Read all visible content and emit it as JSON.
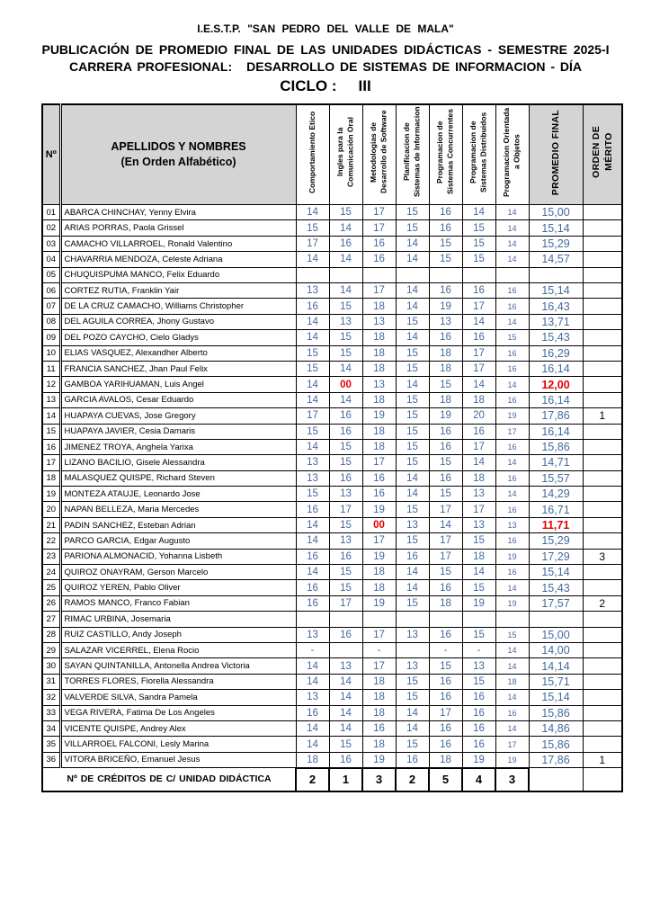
{
  "page": {
    "institution_line": "I.E.S.T.P.    \"SAN PEDRO DEL VALLE DE MALA\"",
    "title_line": "PUBLICACIÓN DE PROMEDIO FINAL DE LAS UNIDADES DIDÁCTICAS - SEMESTRE 2025-I",
    "career_label": "CARRERA PROFESIONAL:",
    "career_value": "DESARROLLO DE SISTEMAS DE INFORMACION - DÍA",
    "cycle_label": "CICLO :",
    "cycle_value": "III"
  },
  "table": {
    "num_header": "Nº",
    "names_header": "APELLIDOS Y NOMBRES",
    "names_subheader": "(En Orden Alfabético)",
    "course_headers": [
      "Comportamiento Etico",
      "Ingles para la Comunicación Oral",
      "Metodologias de Desarrollo de Software",
      "Planificacion de Sistemas de Informacion",
      "Programacion de Sistemas Concurrentes",
      "Programacion de Sistemas Distribuidos",
      "Programacion Orientada a Objetos"
    ],
    "promedio_header": "PROMEDIO FINAL",
    "merito_header": "ORDEN DE\nMÉRITO",
    "rows": [
      {
        "num": "01",
        "name": "ABARCA CHINCHAY, Yenny Elvira",
        "grades": [
          "14",
          "15",
          "17",
          "15",
          "16",
          "14",
          "14"
        ],
        "prom": "15,00",
        "merito": ""
      },
      {
        "num": "02",
        "name": "ARIAS PORRAS, Paola Grissel",
        "grades": [
          "15",
          "14",
          "17",
          "15",
          "16",
          "15",
          "14"
        ],
        "prom": "15,14",
        "merito": ""
      },
      {
        "num": "03",
        "name": "CAMACHO VILLARROEL, Ronald Valentino",
        "grades": [
          "17",
          "16",
          "16",
          "14",
          "15",
          "15",
          "14"
        ],
        "prom": "15,29",
        "merito": ""
      },
      {
        "num": "04",
        "name": "CHAVARRIA MENDOZA, Celeste Adriana",
        "grades": [
          "14",
          "14",
          "16",
          "14",
          "15",
          "15",
          "14"
        ],
        "prom": "14,57",
        "merito": ""
      },
      {
        "num": "05",
        "name": "CHUQUISPUMA MANCO, Felix Eduardo",
        "grades": [
          "",
          "",
          "",
          "",
          "",
          "",
          ""
        ],
        "prom": "",
        "merito": ""
      },
      {
        "num": "06",
        "name": "CORTEZ RUTIA, Franklin Yair",
        "grades": [
          "13",
          "14",
          "17",
          "14",
          "16",
          "16",
          "16"
        ],
        "prom": "15,14",
        "merito": ""
      },
      {
        "num": "07",
        "name": "DE LA CRUZ CAMACHO, Williams Christopher",
        "grades": [
          "16",
          "15",
          "18",
          "14",
          "19",
          "17",
          "16"
        ],
        "prom": "16,43",
        "merito": ""
      },
      {
        "num": "08",
        "name": "DEL AGUILA CORREA, Jhony Gustavo",
        "grades": [
          "14",
          "13",
          "13",
          "15",
          "13",
          "14",
          "14"
        ],
        "prom": "13,71",
        "merito": ""
      },
      {
        "num": "09",
        "name": "DEL POZO CAYCHO, Cielo Gladys",
        "grades": [
          "14",
          "15",
          "18",
          "14",
          "16",
          "16",
          "15"
        ],
        "prom": "15,43",
        "merito": ""
      },
      {
        "num": "10",
        "name": "ELIAS VASQUEZ, Alexandher Alberto",
        "grades": [
          "15",
          "15",
          "18",
          "15",
          "18",
          "17",
          "16"
        ],
        "prom": "16,29",
        "merito": ""
      },
      {
        "num": "11",
        "name": "FRANCIA SANCHEZ, Jhan Paul Felix",
        "grades": [
          "15",
          "14",
          "18",
          "15",
          "18",
          "17",
          "16"
        ],
        "prom": "16,14",
        "merito": ""
      },
      {
        "num": "12",
        "name": "GAMBOA YARIHUAMAN, Luis Angel",
        "grades": [
          "14",
          "00",
          "13",
          "14",
          "15",
          "14",
          "14"
        ],
        "prom": "12,00",
        "merito": "",
        "red": [
          1
        ],
        "prom_red": true
      },
      {
        "num": "13",
        "name": "GARCIA AVALOS, Cesar Eduardo",
        "grades": [
          "14",
          "14",
          "18",
          "15",
          "18",
          "18",
          "16"
        ],
        "prom": "16,14",
        "merito": ""
      },
      {
        "num": "14",
        "name": "HUAPAYA CUEVAS, Jose Gregory",
        "grades": [
          "17",
          "16",
          "19",
          "15",
          "19",
          "20",
          "19"
        ],
        "prom": "17,86",
        "merito": "1"
      },
      {
        "num": "15",
        "name": "HUAPAYA JAVIER, Cesia Damaris",
        "grades": [
          "15",
          "16",
          "18",
          "15",
          "16",
          "16",
          "17"
        ],
        "prom": "16,14",
        "merito": ""
      },
      {
        "num": "16",
        "name": "JIMENEZ TROYA, Anghela Yarixa",
        "grades": [
          "14",
          "15",
          "18",
          "15",
          "16",
          "17",
          "16"
        ],
        "prom": "15,86",
        "merito": ""
      },
      {
        "num": "17",
        "name": "LIZANO BACILIO, Gisele Alessandra",
        "grades": [
          "13",
          "15",
          "17",
          "15",
          "15",
          "14",
          "14"
        ],
        "prom": "14,71",
        "merito": ""
      },
      {
        "num": "18",
        "name": "MALASQUEZ QUISPE, Richard Steven",
        "grades": [
          "13",
          "16",
          "16",
          "14",
          "16",
          "18",
          "16"
        ],
        "prom": "15,57",
        "merito": ""
      },
      {
        "num": "19",
        "name": "MONTEZA ATAUJE, Leonardo Jose",
        "grades": [
          "15",
          "13",
          "16",
          "14",
          "15",
          "13",
          "14"
        ],
        "prom": "14,29",
        "merito": ""
      },
      {
        "num": "20",
        "name": "NAPAN BELLEZA, Maria Mercedes",
        "grades": [
          "16",
          "17",
          "19",
          "15",
          "17",
          "17",
          "16"
        ],
        "prom": "16,71",
        "merito": ""
      },
      {
        "num": "21",
        "name": "PADIN SANCHEZ, Esteban Adrian",
        "grades": [
          "14",
          "15",
          "00",
          "13",
          "14",
          "13",
          "13"
        ],
        "prom": "11,71",
        "merito": "",
        "red": [
          2
        ],
        "prom_red": true
      },
      {
        "num": "22",
        "name": "PARCO GARCIA, Edgar Augusto",
        "grades": [
          "14",
          "13",
          "17",
          "15",
          "17",
          "15",
          "16"
        ],
        "prom": "15,29",
        "merito": ""
      },
      {
        "num": "23",
        "name": "PARIONA ALMONACID, Yohanna Lisbeth",
        "grades": [
          "16",
          "16",
          "19",
          "16",
          "17",
          "18",
          "19"
        ],
        "prom": "17,29",
        "merito": "3"
      },
      {
        "num": "24",
        "name": "QUIROZ ONAYRAM, Gerson Marcelo",
        "grades": [
          "14",
          "15",
          "18",
          "14",
          "15",
          "14",
          "16"
        ],
        "prom": "15,14",
        "merito": ""
      },
      {
        "num": "25",
        "name": "QUIROZ YEREN, Pablo Oliver",
        "grades": [
          "16",
          "15",
          "18",
          "14",
          "16",
          "15",
          "14"
        ],
        "prom": "15,43",
        "merito": ""
      },
      {
        "num": "26",
        "name": "RAMOS MANCO, Franco Fabian",
        "grades": [
          "16",
          "17",
          "19",
          "15",
          "18",
          "19",
          "19"
        ],
        "prom": "17,57",
        "merito": "2"
      },
      {
        "num": "27",
        "name": "RIMAC URBINA, Josemaria",
        "grades": [
          "",
          "",
          "",
          "",
          "",
          "",
          ""
        ],
        "prom": "",
        "merito": ""
      },
      {
        "num": "28",
        "name": "RUIZ CASTILLO, Andy Joseph",
        "grades": [
          "13",
          "16",
          "17",
          "13",
          "16",
          "15",
          "15"
        ],
        "prom": "15,00",
        "merito": ""
      },
      {
        "num": "29",
        "name": "SALAZAR VICERREL, Elena Rocio",
        "grades": [
          "-",
          "",
          "-",
          "",
          "-",
          "-",
          "14"
        ],
        "prom": "14,00",
        "merito": ""
      },
      {
        "num": "30",
        "name": "SAYAN QUINTANILLA, Antonella Andrea Victoria",
        "grades": [
          "14",
          "13",
          "17",
          "13",
          "15",
          "13",
          "14"
        ],
        "prom": "14,14",
        "merito": ""
      },
      {
        "num": "31",
        "name": "TORRES FLORES, Fiorella Alessandra",
        "grades": [
          "14",
          "14",
          "18",
          "15",
          "16",
          "15",
          "18"
        ],
        "prom": "15,71",
        "merito": ""
      },
      {
        "num": "32",
        "name": "VALVERDE SILVA, Sandra Pamela",
        "grades": [
          "13",
          "14",
          "18",
          "15",
          "16",
          "16",
          "14"
        ],
        "prom": "15,14",
        "merito": ""
      },
      {
        "num": "33",
        "name": "VEGA RIVERA, Fatima De Los Angeles",
        "grades": [
          "16",
          "14",
          "18",
          "14",
          "17",
          "16",
          "16"
        ],
        "prom": "15,86",
        "merito": ""
      },
      {
        "num": "34",
        "name": "VICENTE QUISPE, Andrey Alex",
        "grades": [
          "14",
          "14",
          "16",
          "14",
          "16",
          "16",
          "14"
        ],
        "prom": "14,86",
        "merito": ""
      },
      {
        "num": "35",
        "name": "VILLARROEL FALCONI, Lesly Marina",
        "grades": [
          "14",
          "15",
          "18",
          "15",
          "16",
          "16",
          "17"
        ],
        "prom": "15,86",
        "merito": ""
      },
      {
        "num": "36",
        "name": "VITORA BRICEÑO, Emanuel Jesus",
        "grades": [
          "18",
          "16",
          "19",
          "16",
          "18",
          "19",
          "19"
        ],
        "prom": "17,86",
        "merito": "1"
      }
    ],
    "footer_label": "Nº DE CRÉDITOS DE C/  UNIDAD DIDÁCTICA",
    "credits": [
      "2",
      "1",
      "3",
      "2",
      "5",
      "4",
      "3"
    ]
  },
  "colors": {
    "grade_blue": "#44699e",
    "alert_red": "#e60000",
    "header_gray": "#d4d4d4"
  }
}
